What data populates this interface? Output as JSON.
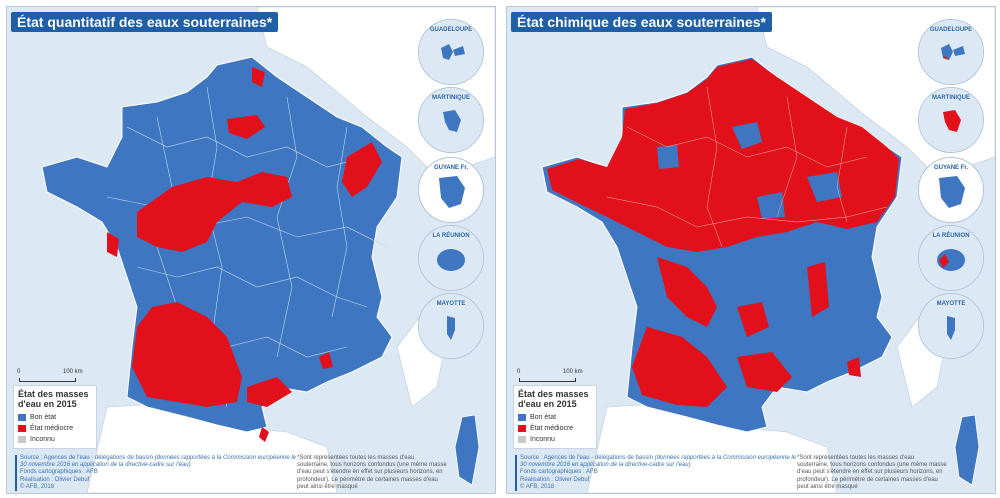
{
  "colors": {
    "bon": "#3f76c2",
    "mediocre": "#e1101a",
    "inconnu": "#c8c8c8",
    "sea": "#dce9f5",
    "neighbor": "#ffffff"
  },
  "panels": [
    {
      "title": "État quantitatif des eaux souterraines*",
      "insets": [
        "GUADELOUPE",
        "MARTINIQUE",
        "GUYANE Fr.",
        "LA RÉUNION",
        "MAYOTTE"
      ],
      "scale": {
        "start": "0",
        "end": "100 km"
      },
      "legend": {
        "title": "État des masses d'eau en 2015",
        "items": [
          "Bon état",
          "État médiocre",
          "Inconnu"
        ]
      },
      "source": {
        "line1_prefix": "Source : Agences de l'eau - délégations de bassin ",
        "line1_italic": "(données rapportées à la Commission européenne le 30 novembre 2016 en application de la directive-cadre sur l'eau)",
        "line2": "Fonds cartographiques : AFB",
        "line3": "Réalisation : Olivier Debuf",
        "line4": "© AFB, 2018"
      },
      "note": "*Sont représentées toutes les masses d'eau souterraine, tous horizons confondus (une même masse d'eau peut s'étendre en effet sur plusieurs horizons, en profondeur). Le périmètre de certaines masses d'eau peut ainsi être masqué"
    },
    {
      "title": "État chimique des eaux souterraines*",
      "insets": [
        "GUADELOUPE",
        "MARTINIQUE",
        "GUYANE Fr.",
        "LA RÉUNION",
        "MAYOTTE"
      ],
      "scale": {
        "start": "0",
        "end": "100 km"
      },
      "legend": {
        "title": "État des masses d'eau en 2015",
        "items": [
          "Bon état",
          "État médiocre",
          "Inconnu"
        ]
      },
      "source": {
        "line1_prefix": "Source : Agences de l'eau - délégations de bassin ",
        "line1_italic": "(données rapportées à la Commission européenne le 30 novembre 2016 en application de la directive-cadre sur l'eau)",
        "line2": "Fonds cartographiques : AFB",
        "line3": "Réalisation : Olivier Debuf",
        "line4": "© AFB, 2018"
      },
      "note": "*Sont représentées toutes les masses d'eau souterraine, tous horizons confondus (une même masse d'eau peut s'étendre en effet sur plusieurs horizons, en profondeur). Le périmètre de certaines masses d'eau peut ainsi être masqué"
    }
  ]
}
